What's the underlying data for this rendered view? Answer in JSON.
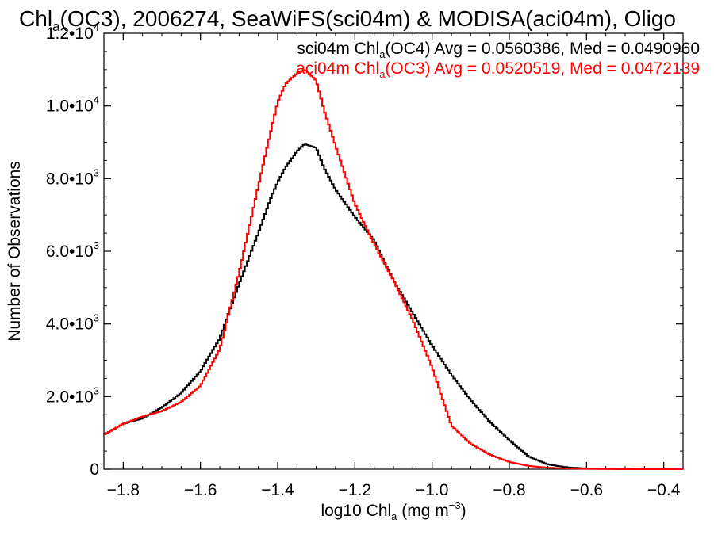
{
  "chart_data": {
    "type": "line",
    "title_parts": [
      "Chl",
      "a",
      "(OC3), 2006274, SeaWiFS(sci04m) & MODISA(aci04m), Oligo"
    ],
    "xlabel_parts": [
      "log10 Chl",
      "a",
      " (mg m",
      "−3",
      ")"
    ],
    "ylabel": "Number of Observations",
    "xlim": [
      -1.85,
      -0.35
    ],
    "ylim": [
      0,
      12000
    ],
    "x_ticks": [
      -1.8,
      -1.6,
      -1.4,
      -1.2,
      -1.0,
      -0.8,
      -0.6,
      -0.4
    ],
    "x_tick_labels": [
      "−1.8",
      "−1.6",
      "−1.4",
      "−1.2",
      "−1.0",
      "−0.8",
      "−0.6",
      "−0.4"
    ],
    "y_ticks": [
      {
        "value": 0,
        "mantissa": "0",
        "exp": ""
      },
      {
        "value": 2000,
        "mantissa": "2.0•10",
        "exp": "3"
      },
      {
        "value": 4000,
        "mantissa": "4.0•10",
        "exp": "3"
      },
      {
        "value": 6000,
        "mantissa": "6.0•10",
        "exp": "3"
      },
      {
        "value": 8000,
        "mantissa": "8.0•10",
        "exp": "3"
      },
      {
        "value": 10000,
        "mantissa": "1.0•10",
        "exp": "4"
      },
      {
        "value": 12000,
        "mantissa": "1.2•10",
        "exp": "4"
      }
    ],
    "grid": false,
    "legend_position": "top-right",
    "series": [
      {
        "legend_parts": [
          "sci04m Chl",
          "a",
          "(OC4) Avg = 0.0560386, Med = 0.0490960"
        ],
        "color": "#000000",
        "x": [
          -1.85,
          -1.8,
          -1.75,
          -1.7,
          -1.65,
          -1.6,
          -1.55,
          -1.5,
          -1.45,
          -1.42,
          -1.4,
          -1.38,
          -1.35,
          -1.33,
          -1.3,
          -1.28,
          -1.25,
          -1.2,
          -1.15,
          -1.1,
          -1.05,
          -1.0,
          -0.95,
          -0.9,
          -0.85,
          -0.8,
          -0.75,
          -0.7,
          -0.65,
          -0.6,
          -0.55,
          -0.5,
          -0.45,
          -0.4,
          -0.35
        ],
        "y": [
          950,
          1250,
          1400,
          1700,
          2100,
          2700,
          3600,
          5100,
          6500,
          7400,
          7900,
          8300,
          8750,
          8950,
          8850,
          8300,
          7700,
          6950,
          6300,
          5200,
          4300,
          3400,
          2600,
          1900,
          1300,
          800,
          350,
          130,
          50,
          20,
          10,
          5,
          0,
          0,
          0
        ]
      },
      {
        "legend_parts": [
          "aci04m Chl",
          "a",
          "(OC3) Avg = 0.0520519, Med = 0.0472139"
        ],
        "color": "#ff0000",
        "x": [
          -1.85,
          -1.8,
          -1.75,
          -1.7,
          -1.65,
          -1.6,
          -1.55,
          -1.5,
          -1.45,
          -1.42,
          -1.4,
          -1.38,
          -1.35,
          -1.33,
          -1.3,
          -1.28,
          -1.25,
          -1.2,
          -1.15,
          -1.1,
          -1.05,
          -1.0,
          -0.95,
          -0.9,
          -0.85,
          -0.8,
          -0.75,
          -0.7,
          -0.65,
          -0.6,
          -0.55,
          -0.5,
          -0.45,
          -0.4,
          -0.35
        ],
        "y": [
          950,
          1250,
          1450,
          1600,
          1850,
          2300,
          3300,
          5400,
          7800,
          9200,
          10100,
          10600,
          10900,
          11000,
          10700,
          9900,
          8900,
          7300,
          6200,
          5200,
          4100,
          2800,
          1200,
          700,
          400,
          200,
          90,
          40,
          20,
          10,
          5,
          0,
          0,
          0,
          0
        ]
      }
    ]
  }
}
